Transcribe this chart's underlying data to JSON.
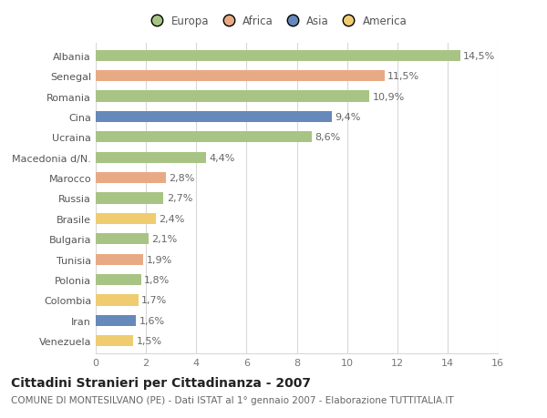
{
  "categories": [
    "Albania",
    "Senegal",
    "Romania",
    "Cina",
    "Ucraina",
    "Macedonia d/N.",
    "Marocco",
    "Russia",
    "Brasile",
    "Bulgaria",
    "Tunisia",
    "Polonia",
    "Colombia",
    "Iran",
    "Venezuela"
  ],
  "values": [
    14.5,
    11.5,
    10.9,
    9.4,
    8.6,
    4.4,
    2.8,
    2.7,
    2.4,
    2.1,
    1.9,
    1.8,
    1.7,
    1.6,
    1.5
  ],
  "labels": [
    "14,5%",
    "11,5%",
    "10,9%",
    "9,4%",
    "8,6%",
    "4,4%",
    "2,8%",
    "2,7%",
    "2,4%",
    "2,1%",
    "1,9%",
    "1,8%",
    "1,7%",
    "1,6%",
    "1,5%"
  ],
  "continents": [
    "Europa",
    "Africa",
    "Europa",
    "Asia",
    "Europa",
    "Europa",
    "Africa",
    "Europa",
    "America",
    "Europa",
    "Africa",
    "Europa",
    "America",
    "Asia",
    "America"
  ],
  "colors": {
    "Europa": "#a8c484",
    "Africa": "#e8aa84",
    "Asia": "#6688bb",
    "America": "#f0cc70"
  },
  "xlim": [
    0,
    16
  ],
  "xticks": [
    0,
    2,
    4,
    6,
    8,
    10,
    12,
    14,
    16
  ],
  "title": "Cittadini Stranieri per Cittadinanza - 2007",
  "subtitle": "COMUNE DI MONTESILVANO (PE) - Dati ISTAT al 1° gennaio 2007 - Elaborazione TUTTITALIA.IT",
  "background_color": "#ffffff",
  "grid_color": "#d8d8d8",
  "bar_height": 0.55,
  "label_fontsize": 8,
  "tick_fontsize": 8,
  "title_fontsize": 10,
  "subtitle_fontsize": 7.5,
  "legend_fontsize": 8.5
}
